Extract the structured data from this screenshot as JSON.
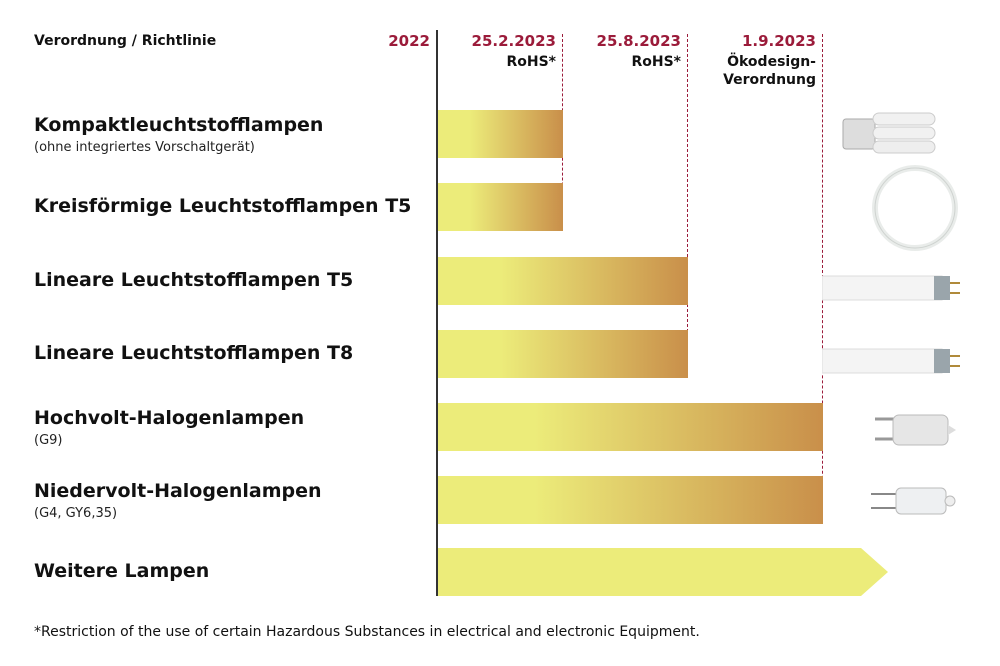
{
  "header": {
    "label": "Verordnung / Richtlinie"
  },
  "milestones": [
    {
      "date": "2022",
      "label": ""
    },
    {
      "date": "25.2.2023",
      "label": "RoHS*"
    },
    {
      "date": "25.8.2023",
      "label": "RoHS*"
    },
    {
      "date": "1.9.2023",
      "label": "Ökodesign-Verordnung",
      "label_lines": [
        "Ökodesign-",
        "Verordnung"
      ]
    }
  ],
  "rows": [
    {
      "name": "Kompaktleuchtstofflampen",
      "note": "(ohne integriertes Vorschaltgerät)",
      "end": "25.2.2023",
      "lamp": "compact-fluorescent-lamp"
    },
    {
      "name": "Kreisförmige Leuchtstofflampen T5",
      "note": "",
      "end": "25.2.2023",
      "lamp": "circular-fluorescent-lamp"
    },
    {
      "name": "Lineare Leuchtstofflampen T5",
      "note": "",
      "end": "25.8.2023",
      "lamp": "linear-tube-lamp"
    },
    {
      "name": "Lineare Leuchtstofflampen T8",
      "note": "",
      "end": "25.8.2023",
      "lamp": "linear-tube-lamp"
    },
    {
      "name": "Hochvolt-Halogenlampen",
      "note": "(G9)",
      "end": "1.9.2023",
      "lamp": "g9-halogen-lamp"
    },
    {
      "name": "Niedervolt-Halogenlampen",
      "note": "(G4, GY6,35)",
      "end": "1.9.2023",
      "lamp": "g4-halogen-lamp"
    },
    {
      "name": "Weitere Lampen",
      "note": "",
      "end": "open",
      "lamp": ""
    }
  ],
  "footnote": "*Restriction of the use of certain Hazardous Substances in electrical and electronic Equipment.",
  "colors": {
    "accent": "#9b1b3a",
    "bar_start": "#ecec7a",
    "bar_end": "#c98f4a"
  },
  "chart_data": {
    "type": "bar",
    "categories": [
      "Kompaktleuchtstofflampen",
      "Kreisförmige Leuchtstofflampen T5",
      "Lineare Leuchtstofflampen T5",
      "Lineare Leuchtstofflampen T8",
      "Hochvolt-Halogenlampen",
      "Niedervolt-Halogenlampen",
      "Weitere Lampen"
    ],
    "x_ticks": [
      "2022",
      "25.2.2023",
      "25.8.2023",
      "1.9.2023"
    ],
    "start": "2022",
    "end": [
      "25.2.2023",
      "25.2.2023",
      "25.8.2023",
      "25.8.2023",
      "1.9.2023",
      "1.9.2023",
      "open"
    ]
  }
}
